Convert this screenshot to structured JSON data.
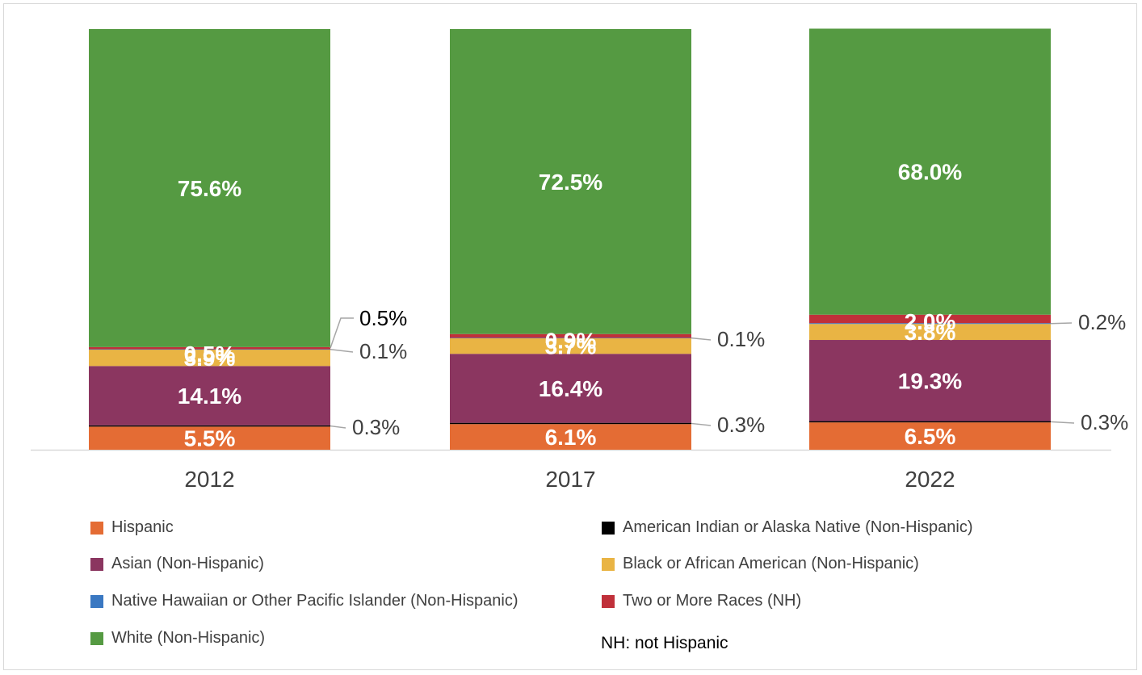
{
  "chart_data": {
    "type": "bar",
    "stacked": true,
    "categories": [
      "2012",
      "2017",
      "2022"
    ],
    "ylim": [
      0,
      100
    ],
    "series": [
      {
        "name": "Hispanic",
        "values": [
          5.5,
          6.1,
          6.5
        ],
        "labels": [
          "5.5%",
          "6.1%",
          "6.5%"
        ],
        "color": "#e46c34"
      },
      {
        "name": "American Indian or Alaska Native (Non-Hispanic)",
        "values": [
          0.3,
          0.3,
          0.3
        ],
        "labels": [
          "0.3%",
          "0.3%",
          "0.3%"
        ],
        "color": "#000000"
      },
      {
        "name": "Asian (Non-Hispanic)",
        "values": [
          14.1,
          16.4,
          19.3
        ],
        "labels": [
          "14.1%",
          "16.4%",
          "19.3%"
        ],
        "color": "#8b3660"
      },
      {
        "name": "Black or African American (Non-Hispanic)",
        "values": [
          3.9,
          3.7,
          3.8
        ],
        "labels": [
          "3.9%",
          "3.7%",
          "3.8%"
        ],
        "color": "#e9b444"
      },
      {
        "name": "Native Hawaiian or Other Pacific Islander (Non-Hispanic)",
        "values": [
          0.1,
          0.1,
          0.2
        ],
        "labels": [
          "0.1%",
          "0.1%",
          "0.2%"
        ],
        "color": "#3a78c2"
      },
      {
        "name": "Two or More Races (NH)",
        "values": [
          0.5,
          0.9,
          2.0
        ],
        "labels": [
          "0.5%",
          "0.9%",
          "2.0%"
        ],
        "color": "#c0303a"
      },
      {
        "name": "White (Non-Hispanic)",
        "values": [
          75.6,
          72.5,
          68.0
        ],
        "labels": [
          "75.6%",
          "72.5%",
          "68.0%"
        ],
        "color": "#559a42"
      }
    ]
  },
  "legend": [
    {
      "label": "Hispanic",
      "color": "#e46c34"
    },
    {
      "label": "American Indian or Alaska Native (Non-Hispanic)",
      "color": "#000000"
    },
    {
      "label": "Asian (Non-Hispanic)",
      "color": "#8b3660"
    },
    {
      "label": "Black or African American (Non-Hispanic)",
      "color": "#e9b444"
    },
    {
      "label": "Native Hawaiian or Other Pacific Islander (Non-Hispanic)",
      "color": "#3a78c2"
    },
    {
      "label": "Two or More Races (NH)",
      "color": "#c0303a"
    },
    {
      "label": "White (Non-Hispanic)",
      "color": "#559a42"
    }
  ],
  "note": "NH: not Hispanic"
}
